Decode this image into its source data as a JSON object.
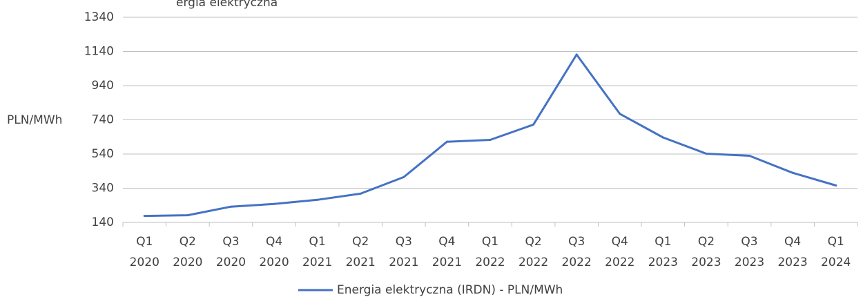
{
  "chart_data": {
    "type": "line",
    "title_fragment": "ergia elektryczna",
    "ylabel": "PLN/MWh",
    "ylim": [
      140,
      1340
    ],
    "yticks": [
      140,
      340,
      540,
      740,
      940,
      1140,
      1340
    ],
    "grid": true,
    "legend_position": "bottom",
    "categories": [
      [
        "Q1",
        "2020"
      ],
      [
        "Q2",
        "2020"
      ],
      [
        "Q3",
        "2020"
      ],
      [
        "Q4",
        "2020"
      ],
      [
        "Q1",
        "2021"
      ],
      [
        "Q2",
        "2021"
      ],
      [
        "Q3",
        "2021"
      ],
      [
        "Q4",
        "2021"
      ],
      [
        "Q1",
        "2022"
      ],
      [
        "Q2",
        "2022"
      ],
      [
        "Q3",
        "2022"
      ],
      [
        "Q4",
        "2022"
      ],
      [
        "Q1",
        "2023"
      ],
      [
        "Q2",
        "2023"
      ],
      [
        "Q3",
        "2023"
      ],
      [
        "Q4",
        "2023"
      ],
      [
        "Q1",
        "2024"
      ]
    ],
    "series": [
      {
        "name": "Energia elektryczna (IRDN) - PLN/MWh",
        "color": "#4472C4",
        "values": [
          178,
          182,
          232,
          248,
          272,
          308,
          405,
          612,
          623,
          712,
          1122,
          775,
          637,
          542,
          530,
          430,
          356
        ]
      }
    ]
  }
}
